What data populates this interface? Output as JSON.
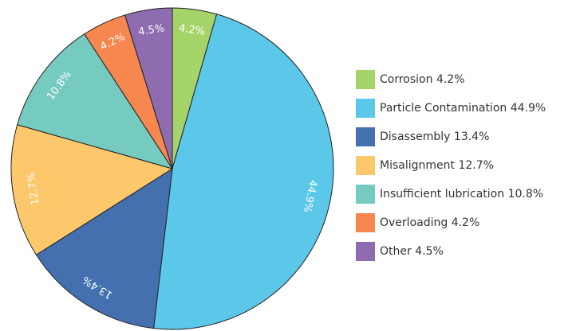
{
  "chart_data": {
    "type": "pie",
    "categories": [
      "Corrosion",
      "Particle Contamination",
      "Disassembly",
      "Misalignment",
      "Insufficient lubrication",
      "Overloading",
      "Other"
    ],
    "values": [
      4.2,
      44.9,
      13.4,
      12.7,
      10.8,
      4.2,
      4.5
    ],
    "value_labels": [
      "4.2%",
      "44.9%",
      "13.4%",
      "12.7%",
      "10.8%",
      "4.2%",
      "4.5%"
    ],
    "colors": [
      "#a5d46b",
      "#5bc8e9",
      "#4570b0",
      "#fdc86b",
      "#76cbc1",
      "#f5874f",
      "#8f6cb0"
    ],
    "legend": "right"
  }
}
